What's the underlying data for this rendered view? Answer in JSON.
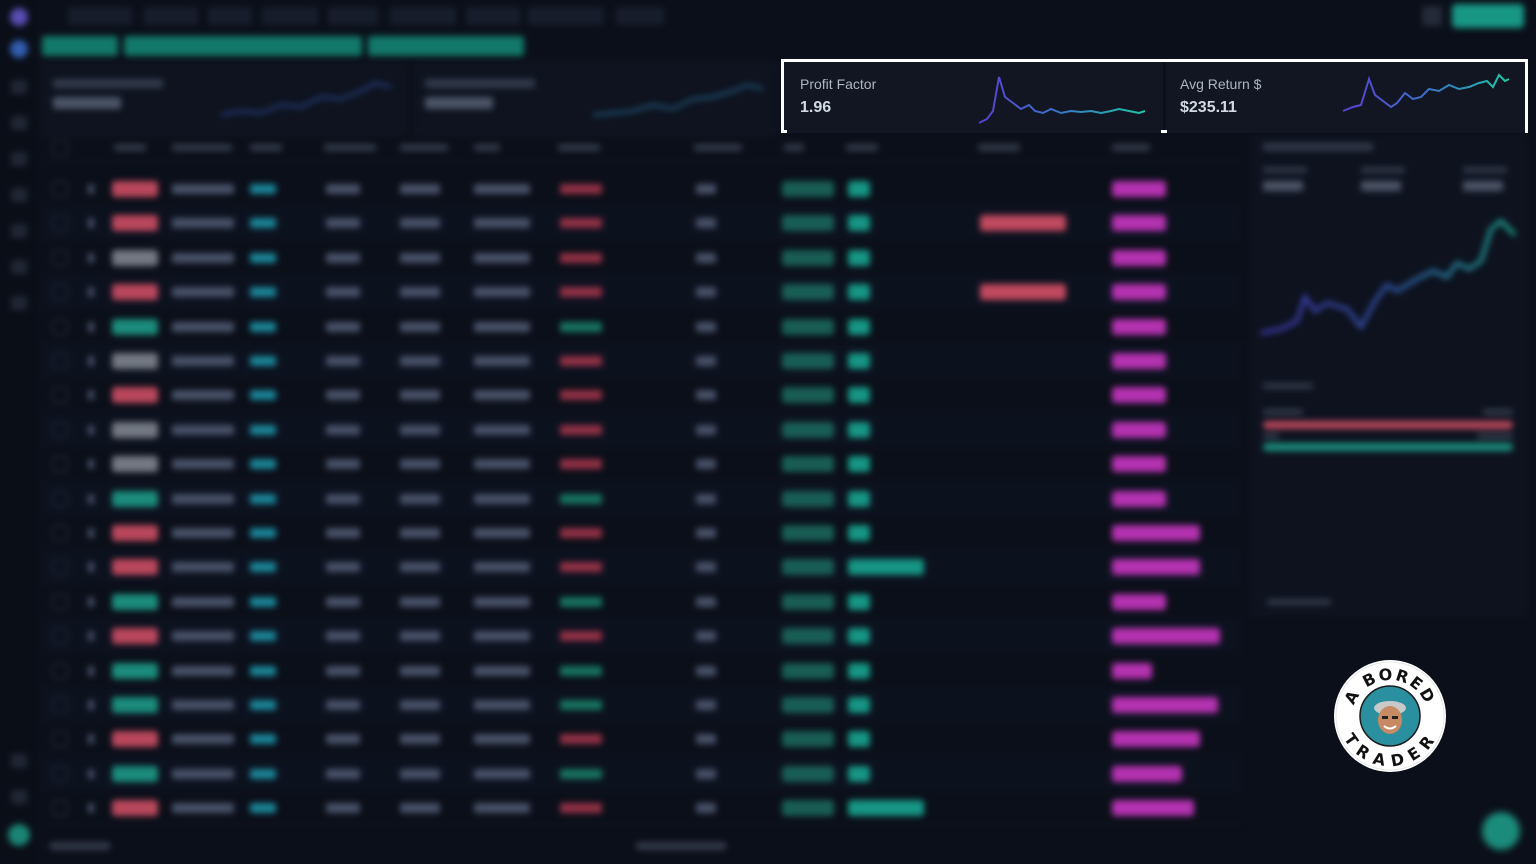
{
  "stats": {
    "profit_factor": {
      "label": "Profit Factor",
      "value": "1.96"
    },
    "avg_return": {
      "label": "Avg Return $",
      "value": "$235.11"
    }
  },
  "logo": {
    "top_text": "A BORED",
    "bottom_text": "TRADER"
  },
  "colors": {
    "highlight_border": "#ffffff",
    "background": "#0b0f19",
    "card": "#111622",
    "sparkline_start": "#5b3fd1",
    "sparkline_end": "#1fc7a6",
    "win": "#1fa892",
    "loss": "#e0546c",
    "tag": "#d93ad1"
  }
}
